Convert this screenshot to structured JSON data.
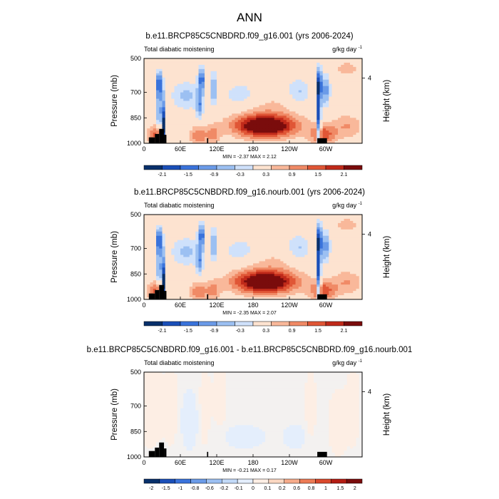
{
  "page": {
    "title": "ANN"
  },
  "colors": {
    "scale12": [
      "#08306b",
      "#1a4fb8",
      "#3a73db",
      "#6b9be8",
      "#9cc0f2",
      "#cfe1fb",
      "#fde3d0",
      "#f9b89a",
      "#f08a66",
      "#e05636",
      "#c02a1a",
      "#7a0c0c"
    ],
    "scale14": [
      "#08306b",
      "#1a4fb8",
      "#3a73db",
      "#6b9be8",
      "#9cc0f2",
      "#c2d9f7",
      "#e4eefc",
      "#fdeee4",
      "#fbd7c2",
      "#f6ab8a",
      "#ec7b55",
      "#d9492c",
      "#b41d14",
      "#7a0c0c"
    ],
    "land": "#000000"
  },
  "panels": [
    {
      "title": "b.e11.BRCP85C5CNBDRD.f09_g16.001 (yrs 2006-2024)",
      "left_label": "Total diabatic moistening",
      "units_label": "g/kg day",
      "units_exp": "-1",
      "ylabel": "Pressure (mb)",
      "right_label": "Height (km)",
      "minmax": "MIN = -2.37  MAX =  2.12",
      "colorbar_labels": [
        "-2.1",
        "-1.5",
        "-0.9",
        "-0.3",
        "0.3",
        "0.9",
        "1.5",
        "2.1"
      ]
    },
    {
      "title": "b.e11.BRCP85C5CNBDRD.f09_g16.nourb.001 (yrs 2006-2024)",
      "left_label": "Total diabatic moistening",
      "units_label": "g/kg day",
      "units_exp": "-1",
      "ylabel": "Pressure (mb)",
      "right_label": "Height (km)",
      "minmax": "MIN = -2.35  MAX =  2.07",
      "colorbar_labels": [
        "-2.1",
        "-1.5",
        "-0.9",
        "-0.3",
        "0.3",
        "0.9",
        "1.5",
        "2.1"
      ]
    },
    {
      "title": "b.e11.BRCP85C5CNBDRD.f09_g16.001 - b.e11.BRCP85C5CNBDRD.f09_g16.nourb.001",
      "left_label": "Total diabatic moistening",
      "units_label": "g/kg day",
      "units_exp": "-1",
      "ylabel": "Pressure (mb)",
      "right_label": "Height (km)",
      "minmax": "MIN = -0.21  MAX =  0.17",
      "colorbar_labels": [
        "-2",
        "-1.5",
        "-1",
        "-0.8",
        "-0.6",
        "-0.2",
        "-0.1",
        "0",
        "0.1",
        "0.2",
        "0.6",
        "0.8",
        "1",
        "1.5",
        "2"
      ]
    }
  ],
  "chart_data": [
    {
      "type": "heatmap",
      "title": "b.e11.BRCP85C5CNBDRD.f09_g16.001 (yrs 2006-2024)",
      "ylabel": "Pressure (mb)",
      "y2label": "Height (km)",
      "x_ticklabels": [
        "0",
        "60E",
        "120E",
        "180",
        "120W",
        "60W"
      ],
      "x_tick_lon": [
        0,
        60,
        120,
        180,
        240,
        300
      ],
      "xlim": [
        0,
        360
      ],
      "y_ticklabels": [
        "500",
        "700",
        "850",
        "1000"
      ],
      "y_tick_p": [
        500,
        700,
        850,
        1000
      ],
      "ylim": [
        500,
        1000
      ],
      "y2_ticklabels": [
        "4"
      ],
      "y2_tick_p": [
        616
      ],
      "min": -2.37,
      "max": 2.12,
      "levels": [
        -2.1,
        -1.8,
        -1.5,
        -1.2,
        -0.9,
        -0.6,
        -0.3,
        0,
        0.3,
        0.6,
        0.9,
        1.2,
        1.5,
        1.8,
        2.1
      ],
      "features": [
        {
          "lon": 25,
          "p": 650,
          "slon": 4,
          "sp": 60,
          "v": -1.6
        },
        {
          "lon": 25,
          "p": 820,
          "slon": 3,
          "sp": 70,
          "v": -1.2
        },
        {
          "lon": 33,
          "p": 930,
          "slon": 2,
          "sp": 120,
          "v": -2.3
        },
        {
          "lon": 20,
          "p": 950,
          "slon": 10,
          "sp": 40,
          "v": 1.0
        },
        {
          "lon": 95,
          "p": 620,
          "slon": 4,
          "sp": 50,
          "v": -1.4
        },
        {
          "lon": 92,
          "p": 780,
          "slon": 4,
          "sp": 60,
          "v": -1.0
        },
        {
          "lon": 115,
          "p": 680,
          "slon": 4,
          "sp": 70,
          "v": -1.0
        },
        {
          "lon": 90,
          "p": 955,
          "slon": 10,
          "sp": 40,
          "v": 0.9
        },
        {
          "lon": 115,
          "p": 950,
          "slon": 8,
          "sp": 40,
          "v": 0.7
        },
        {
          "lon": 70,
          "p": 720,
          "slon": 18,
          "sp": 60,
          "v": -0.7
        },
        {
          "lon": 160,
          "p": 720,
          "slon": 22,
          "sp": 60,
          "v": -0.6
        },
        {
          "lon": 200,
          "p": 900,
          "slon": 35,
          "sp": 45,
          "v": 2.1
        },
        {
          "lon": 200,
          "p": 810,
          "slon": 45,
          "sp": 90,
          "v": 0.4
        },
        {
          "lon": 255,
          "p": 700,
          "slon": 14,
          "sp": 60,
          "v": -0.7
        },
        {
          "lon": 289,
          "p": 650,
          "slon": 3,
          "sp": 70,
          "v": -1.7
        },
        {
          "lon": 289,
          "p": 870,
          "slon": 2,
          "sp": 120,
          "v": -2.3
        },
        {
          "lon": 300,
          "p": 690,
          "slon": 5,
          "sp": 70,
          "v": -1.1
        },
        {
          "lon": 295,
          "p": 950,
          "slon": 15,
          "sp": 40,
          "v": 1.1
        },
        {
          "lon": 335,
          "p": 560,
          "slon": 18,
          "sp": 40,
          "v": 0.4
        },
        {
          "lon": 335,
          "p": 900,
          "slon": 18,
          "sp": 50,
          "v": 0.6
        },
        {
          "lon": 10,
          "p": 540,
          "slon": 12,
          "sp": 40,
          "v": 0.3
        }
      ],
      "terrain": [
        {
          "lon": [
            8,
            18
          ],
          "p_top": 965
        },
        {
          "lon": [
            18,
            25
          ],
          "p_top": 945
        },
        {
          "lon": [
            25,
            33
          ],
          "p_top": 915
        },
        {
          "lon": [
            33,
            37
          ],
          "p_top": 950
        },
        {
          "lon": [
            104,
            106
          ],
          "p_top": 970
        },
        {
          "lon": [
            286,
            302
          ],
          "p_top": 970
        }
      ]
    },
    {
      "type": "heatmap",
      "title": "b.e11.BRCP85C5CNBDRD.f09_g16.nourb.001 (yrs 2006-2024)",
      "ylabel": "Pressure (mb)",
      "y2label": "Height (km)",
      "x_ticklabels": [
        "0",
        "60E",
        "120E",
        "180",
        "120W",
        "60W"
      ],
      "x_tick_lon": [
        0,
        60,
        120,
        180,
        240,
        300
      ],
      "xlim": [
        0,
        360
      ],
      "y_ticklabels": [
        "500",
        "700",
        "850",
        "1000"
      ],
      "y_tick_p": [
        500,
        700,
        850,
        1000
      ],
      "ylim": [
        500,
        1000
      ],
      "y2_ticklabels": [
        "4"
      ],
      "y2_tick_p": [
        616
      ],
      "min": -2.35,
      "max": 2.07,
      "levels": [
        -2.1,
        -1.8,
        -1.5,
        -1.2,
        -0.9,
        -0.6,
        -0.3,
        0,
        0.3,
        0.6,
        0.9,
        1.2,
        1.5,
        1.8,
        2.1
      ],
      "features": [
        {
          "lon": 25,
          "p": 650,
          "slon": 4,
          "sp": 60,
          "v": -1.6
        },
        {
          "lon": 25,
          "p": 820,
          "slon": 3,
          "sp": 70,
          "v": -1.2
        },
        {
          "lon": 33,
          "p": 930,
          "slon": 2,
          "sp": 120,
          "v": -2.3
        },
        {
          "lon": 20,
          "p": 950,
          "slon": 10,
          "sp": 40,
          "v": 1.0
        },
        {
          "lon": 95,
          "p": 620,
          "slon": 4,
          "sp": 50,
          "v": -1.4
        },
        {
          "lon": 92,
          "p": 780,
          "slon": 4,
          "sp": 60,
          "v": -1.0
        },
        {
          "lon": 115,
          "p": 680,
          "slon": 4,
          "sp": 70,
          "v": -1.0
        },
        {
          "lon": 90,
          "p": 955,
          "slon": 10,
          "sp": 40,
          "v": 0.9
        },
        {
          "lon": 115,
          "p": 950,
          "slon": 8,
          "sp": 40,
          "v": 0.7
        },
        {
          "lon": 70,
          "p": 720,
          "slon": 18,
          "sp": 60,
          "v": -0.7
        },
        {
          "lon": 160,
          "p": 720,
          "slon": 22,
          "sp": 60,
          "v": -0.6
        },
        {
          "lon": 200,
          "p": 900,
          "slon": 35,
          "sp": 45,
          "v": 2.05
        },
        {
          "lon": 200,
          "p": 810,
          "slon": 45,
          "sp": 90,
          "v": 0.4
        },
        {
          "lon": 255,
          "p": 700,
          "slon": 14,
          "sp": 60,
          "v": -0.7
        },
        {
          "lon": 289,
          "p": 650,
          "slon": 3,
          "sp": 70,
          "v": -1.7
        },
        {
          "lon": 289,
          "p": 870,
          "slon": 2,
          "sp": 120,
          "v": -2.3
        },
        {
          "lon": 300,
          "p": 690,
          "slon": 5,
          "sp": 70,
          "v": -1.1
        },
        {
          "lon": 295,
          "p": 950,
          "slon": 15,
          "sp": 40,
          "v": 1.1
        },
        {
          "lon": 335,
          "p": 560,
          "slon": 18,
          "sp": 40,
          "v": 0.4
        },
        {
          "lon": 335,
          "p": 900,
          "slon": 18,
          "sp": 50,
          "v": 0.6
        },
        {
          "lon": 10,
          "p": 540,
          "slon": 12,
          "sp": 40,
          "v": 0.3
        }
      ],
      "terrain": [
        {
          "lon": [
            8,
            18
          ],
          "p_top": 965
        },
        {
          "lon": [
            18,
            25
          ],
          "p_top": 945
        },
        {
          "lon": [
            25,
            33
          ],
          "p_top": 915
        },
        {
          "lon": [
            33,
            37
          ],
          "p_top": 950
        },
        {
          "lon": [
            104,
            106
          ],
          "p_top": 970
        },
        {
          "lon": [
            286,
            302
          ],
          "p_top": 970
        }
      ]
    },
    {
      "type": "heatmap",
      "title": "b.e11.BRCP85C5CNBDRD.f09_g16.001 - b.e11.BRCP85C5CNBDRD.f09_g16.nourb.001",
      "ylabel": "Pressure (mb)",
      "y2label": "Height (km)",
      "x_ticklabels": [
        "0",
        "60E",
        "120E",
        "180",
        "120W",
        "60W"
      ],
      "x_tick_lon": [
        0,
        60,
        120,
        180,
        240,
        300
      ],
      "xlim": [
        0,
        360
      ],
      "y_ticklabels": [
        "500",
        "700",
        "850",
        "1000"
      ],
      "y_tick_p": [
        500,
        700,
        850,
        1000
      ],
      "ylim": [
        500,
        1000
      ],
      "y2_ticklabels": [
        "4"
      ],
      "y2_tick_p": [
        616
      ],
      "min": -0.21,
      "max": 0.17,
      "levels": [
        -2,
        -1.5,
        -1,
        -0.8,
        -0.6,
        -0.2,
        -0.1,
        0,
        0.1,
        0.2,
        0.6,
        0.8,
        1,
        1.5,
        2
      ],
      "features": [
        {
          "lon": 10,
          "p": 700,
          "slon": 15,
          "sp": 150,
          "v": 0.06
        },
        {
          "lon": 45,
          "p": 700,
          "slon": 8,
          "sp": 150,
          "v": 0.05
        },
        {
          "lon": 75,
          "p": 780,
          "slon": 10,
          "sp": 120,
          "v": -0.05
        },
        {
          "lon": 100,
          "p": 700,
          "slon": 6,
          "sp": 160,
          "v": 0.05
        },
        {
          "lon": 125,
          "p": 650,
          "slon": 8,
          "sp": 120,
          "v": 0.05
        },
        {
          "lon": 165,
          "p": 880,
          "slon": 25,
          "sp": 50,
          "v": -0.04
        },
        {
          "lon": 250,
          "p": 880,
          "slon": 15,
          "sp": 50,
          "v": -0.04
        },
        {
          "lon": 275,
          "p": 700,
          "slon": 6,
          "sp": 150,
          "v": 0.05
        },
        {
          "lon": 320,
          "p": 800,
          "slon": 10,
          "sp": 120,
          "v": 0.06
        },
        {
          "lon": 345,
          "p": 700,
          "slon": 8,
          "sp": 150,
          "v": 0.05
        }
      ],
      "terrain": [
        {
          "lon": [
            8,
            18
          ],
          "p_top": 965
        },
        {
          "lon": [
            18,
            25
          ],
          "p_top": 945
        },
        {
          "lon": [
            25,
            33
          ],
          "p_top": 915
        },
        {
          "lon": [
            33,
            37
          ],
          "p_top": 950
        },
        {
          "lon": [
            104,
            106
          ],
          "p_top": 970
        },
        {
          "lon": [
            286,
            302
          ],
          "p_top": 970
        }
      ]
    }
  ]
}
